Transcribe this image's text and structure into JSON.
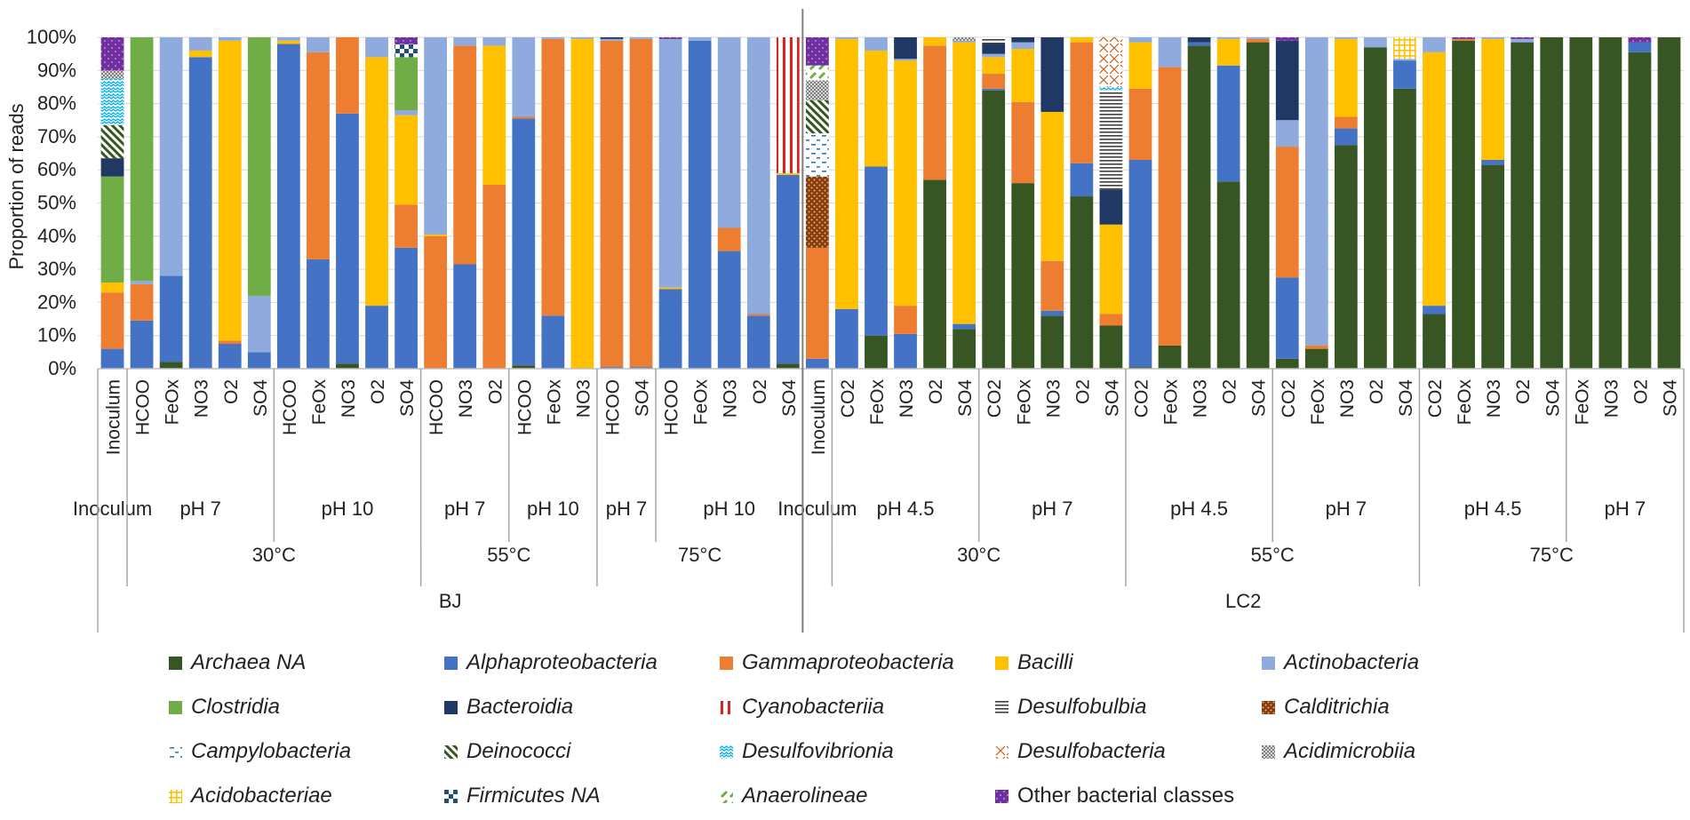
{
  "chart_data": {
    "type": "bar",
    "stacked": true,
    "ylabel": "Proportion of reads",
    "ylim": [
      0,
      100
    ],
    "y_ticks": [
      "0%",
      "10%",
      "20%",
      "30%",
      "40%",
      "50%",
      "60%",
      "70%",
      "80%",
      "90%",
      "100%"
    ],
    "classes": [
      "Archaea NA",
      "Alphaproteobacteria",
      "Gammaproteobacteria",
      "Bacilli",
      "Actinobacteria",
      "Clostridia",
      "Bacteroidia",
      "Cyanobacteriia",
      "Desulfobulbia",
      "Calditrichia",
      "Campylobacteria",
      "Deinococci",
      "Desulfovibrionia",
      "Desulfobacteria",
      "Acidimicrobiia",
      "Acidobacteriae",
      "Firmicutes NA",
      "Anaerolineae",
      "Other bacterial classes"
    ],
    "class_colors": {
      "Archaea NA": "#375623",
      "Alphaproteobacteria": "#4472c4",
      "Gammaproteobacteria": "#ed7d31",
      "Bacilli": "#ffc000",
      "Actinobacteria": "#8faadc",
      "Clostridia": "#70ad47",
      "Bacteroidia": "#203864",
      "Cyanobacteriia": "#e0201b",
      "Desulfobulbia": "#404040",
      "Calditrichia": "#843c0c",
      "Campylobacteria": "#2e75b6",
      "Deinococci": "#375623",
      "Desulfovibrionia": "#00b0f0",
      "Desulfobacteria": "#c55a11",
      "Acidimicrobiia": "#7f7f7f",
      "Acidobacteriae": "#ffc000",
      "Firmicutes NA": "#1f4e79",
      "Anaerolineae": "#70ad47",
      "Other bacterial classes": "#7030a0"
    },
    "legend": [
      {
        "label": "Archaea NA",
        "italic": true
      },
      {
        "label": "Alphaproteobacteria",
        "italic": true
      },
      {
        "label": "Gammaproteobacteria",
        "italic": true
      },
      {
        "label": "Bacilli",
        "italic": true
      },
      {
        "label": "Actinobacteria",
        "italic": true
      },
      {
        "label": "Clostridia",
        "italic": true
      },
      {
        "label": "Bacteroidia",
        "italic": true
      },
      {
        "label": "Cyanobacteriia",
        "italic": true
      },
      {
        "label": "Desulfobulbia",
        "italic": true
      },
      {
        "label": "Calditrichia",
        "italic": true
      },
      {
        "label": "Campylobacteria",
        "italic": true
      },
      {
        "label": "Deinococci",
        "italic": true
      },
      {
        "label": "Desulfovibrionia",
        "italic": true
      },
      {
        "label": "Desulfobacteria",
        "italic": true
      },
      {
        "label": "Acidimicrobiia",
        "italic": true
      },
      {
        "label": "Acidobacteriae",
        "italic": true
      },
      {
        "label": "Firmicutes NA",
        "italic": true
      },
      {
        "label": "Anaerolineae",
        "italic": true
      },
      {
        "label": "Other bacterial classes",
        "italic": false
      }
    ],
    "level1": [
      {
        "label": "Inoculum",
        "span": 1
      },
      {
        "label": "pH 7",
        "span": 5
      },
      {
        "label": "pH 10",
        "span": 5
      },
      {
        "label": "pH 7",
        "span": 3
      },
      {
        "label": "pH 10",
        "span": 3
      },
      {
        "label": "pH 7",
        "span": 2
      },
      {
        "label": "pH 10",
        "span": 5
      },
      {
        "label": "Inoculum",
        "span": 1
      },
      {
        "label": "pH 4.5",
        "span": 5
      },
      {
        "label": "pH 7",
        "span": 5
      },
      {
        "label": "pH 4.5",
        "span": 5
      },
      {
        "label": "pH 7",
        "span": 5
      },
      {
        "label": "pH 4.5",
        "span": 5
      },
      {
        "label": "pH 7",
        "span": 4
      }
    ],
    "level2": [
      {
        "label": "",
        "span": 1
      },
      {
        "label": "30°C",
        "span": 10
      },
      {
        "label": "55°C",
        "span": 6
      },
      {
        "label": "75°C",
        "span": 7
      },
      {
        "label": "",
        "span": 1
      },
      {
        "label": "30°C",
        "span": 10
      },
      {
        "label": "55°C",
        "span": 10
      },
      {
        "label": "75°C",
        "span": 9
      }
    ],
    "level3": [
      {
        "label": "BJ",
        "span": 24
      },
      {
        "label": "LC2",
        "span": 30
      }
    ],
    "bars": [
      {
        "label": "Inoculum",
        "values": {
          "Alphaproteobacteria": 6,
          "Gammaproteobacteria": 17,
          "Bacilli": 3,
          "Clostridia": 32,
          "Bacteroidia": 5.5,
          "Deinococci": 10,
          "Desulfovibrionia": 14,
          "Acidimicrobiia": 2.5,
          "Other bacterial classes": 10
        }
      },
      {
        "label": "HCOO",
        "values": {
          "Alphaproteobacteria": 14.5,
          "Gammaproteobacteria": 11,
          "Actinobacteria": 1,
          "Clostridia": 73.5
        }
      },
      {
        "label": "FeOx",
        "values": {
          "Archaea NA": 2,
          "Alphaproteobacteria": 26,
          "Actinobacteria": 72
        }
      },
      {
        "label": "NO3",
        "values": {
          "Alphaproteobacteria": 94,
          "Bacilli": 2,
          "Actinobacteria": 4
        }
      },
      {
        "label": "O2",
        "values": {
          "Alphaproteobacteria": 7.5,
          "Gammaproteobacteria": 1,
          "Bacilli": 90.5,
          "Actinobacteria": 1
        }
      },
      {
        "label": "SO4",
        "values": {
          "Alphaproteobacteria": 5,
          "Actinobacteria": 17,
          "Clostridia": 78
        }
      },
      {
        "label": "HCOO",
        "values": {
          "Alphaproteobacteria": 98,
          "Bacilli": 1,
          "Actinobacteria": 1
        }
      },
      {
        "label": "FeOx",
        "values": {
          "Alphaproteobacteria": 33,
          "Gammaproteobacteria": 62.5,
          "Actinobacteria": 4.5
        }
      },
      {
        "label": "NO3",
        "values": {
          "Archaea NA": 1.5,
          "Alphaproteobacteria": 75.5,
          "Gammaproteobacteria": 23
        }
      },
      {
        "label": "O2",
        "values": {
          "Alphaproteobacteria": 19,
          "Bacilli": 75,
          "Actinobacteria": 6
        }
      },
      {
        "label": "SO4",
        "values": {
          "Alphaproteobacteria": 36.5,
          "Gammaproteobacteria": 13,
          "Bacilli": 27,
          "Actinobacteria": 1.5,
          "Clostridia": 16,
          "Firmicutes NA": 4,
          "Other bacterial classes": 2
        }
      },
      {
        "label": "HCOO",
        "values": {
          "Gammaproteobacteria": 40,
          "Bacilli": 0.5,
          "Actinobacteria": 59.5
        }
      },
      {
        "label": "NO3",
        "values": {
          "Alphaproteobacteria": 31.5,
          "Gammaproteobacteria": 66,
          "Actinobacteria": 2.5
        }
      },
      {
        "label": "O2",
        "values": {
          "Gammaproteobacteria": 55.5,
          "Bacilli": 42,
          "Actinobacteria": 2.5
        }
      },
      {
        "label": "HCOO",
        "values": {
          "Archaea NA": 1,
          "Alphaproteobacteria": 74.5,
          "Gammaproteobacteria": 0.5,
          "Actinobacteria": 24
        }
      },
      {
        "label": "FeOx",
        "values": {
          "Alphaproteobacteria": 16,
          "Gammaproteobacteria": 83.5,
          "Actinobacteria": 0.5
        }
      },
      {
        "label": "NO3",
        "values": {
          "Bacilli": 99.5,
          "Actinobacteria": 0.5
        }
      },
      {
        "label": "HCOO",
        "values": {
          "Alphaproteobacteria": 0.5,
          "Gammaproteobacteria": 98.5,
          "Actinobacteria": 0.5,
          "Bacteroidia": 0.5
        }
      },
      {
        "label": "SO4",
        "values": {
          "Alphaproteobacteria": 0.5,
          "Gammaproteobacteria": 99,
          "Actinobacteria": 0.5
        }
      },
      {
        "label": "HCOO",
        "values": {
          "Alphaproteobacteria": 24,
          "Bacilli": 0.5,
          "Actinobacteria": 75,
          "Other bacterial classes": 0.5
        }
      },
      {
        "label": "FeOx",
        "values": {
          "Alphaproteobacteria": 99,
          "Actinobacteria": 1
        }
      },
      {
        "label": "NO3",
        "values": {
          "Alphaproteobacteria": 35.5,
          "Gammaproteobacteria": 7,
          "Actinobacteria": 57.5
        }
      },
      {
        "label": "O2",
        "values": {
          "Alphaproteobacteria": 16,
          "Gammaproteobacteria": 0.5,
          "Actinobacteria": 83.5
        }
      },
      {
        "label": "SO4",
        "values": {
          "Archaea NA": 1.5,
          "Alphaproteobacteria": 57,
          "Bacilli": 0.5,
          "Cyanobacteriia": 41
        }
      },
      {
        "label": "Inoculum",
        "values": {
          "Alphaproteobacteria": 3,
          "Gammaproteobacteria": 33.5,
          "Calditrichia": 21.5,
          "Campylobacteria": 13,
          "Deinococci": 10,
          "Acidimicrobiia": 6,
          "Anaerolineae": 4.5,
          "Other bacterial classes": 8.5
        }
      },
      {
        "label": "CO2",
        "values": {
          "Alphaproteobacteria": 18,
          "Bacilli": 81.5,
          "Actinobacteria": 0.5
        }
      },
      {
        "label": "FeOx",
        "values": {
          "Archaea NA": 10,
          "Alphaproteobacteria": 51,
          "Bacilli": 35,
          "Actinobacteria": 4
        }
      },
      {
        "label": "NO3",
        "values": {
          "Alphaproteobacteria": 10.5,
          "Gammaproteobacteria": 8.5,
          "Bacilli": 74,
          "Actinobacteria": 0.5,
          "Bacteroidia": 6.5
        }
      },
      {
        "label": "O2",
        "values": {
          "Archaea NA": 57,
          "Gammaproteobacteria": 40.5,
          "Bacilli": 2.5
        }
      },
      {
        "label": "SO4",
        "values": {
          "Archaea NA": 12,
          "Alphaproteobacteria": 1.5,
          "Bacilli": 85,
          "Actinobacteria": 0.5,
          "Acidimicrobiia": 1
        }
      },
      {
        "label": "CO2",
        "values": {
          "Archaea NA": 84,
          "Alphaproteobacteria": 0.5,
          "Gammaproteobacteria": 4.5,
          "Bacilli": 5,
          "Actinobacteria": 1,
          "Bacteroidia": 3,
          "Desulfobulbia": 2
        }
      },
      {
        "label": "FeOx",
        "values": {
          "Archaea NA": 56,
          "Gammaproteobacteria": 24.5,
          "Bacilli": 16,
          "Actinobacteria": 2,
          "Bacteroidia": 1.5
        }
      },
      {
        "label": "NO3",
        "values": {
          "Archaea NA": 16,
          "Alphaproteobacteria": 1.5,
          "Gammaproteobacteria": 15,
          "Bacilli": 45,
          "Bacteroidia": 22.5
        }
      },
      {
        "label": "O2",
        "values": {
          "Archaea NA": 52,
          "Alphaproteobacteria": 10,
          "Gammaproteobacteria": 36.5,
          "Bacilli": 1.5
        }
      },
      {
        "label": "SO4",
        "values": {
          "Archaea NA": 13,
          "Gammaproteobacteria": 3.5,
          "Bacilli": 27,
          "Bacteroidia": 10.5,
          "Desulfobulbia": 30,
          "Desulfobacteria": 15,
          "Desulfovibrionia": 1
        }
      },
      {
        "label": "CO2",
        "values": {
          "Archaea NA": 0.5,
          "Alphaproteobacteria": 62.5,
          "Gammaproteobacteria": 21.5,
          "Bacilli": 14,
          "Actinobacteria": 1.5
        }
      },
      {
        "label": "FeOx",
        "values": {
          "Archaea NA": 7,
          "Gammaproteobacteria": 84,
          "Actinobacteria": 9
        }
      },
      {
        "label": "NO3",
        "values": {
          "Archaea NA": 97.5,
          "Alphaproteobacteria": 1,
          "Bacteroidia": 1.5
        }
      },
      {
        "label": "O2",
        "values": {
          "Archaea NA": 56.5,
          "Alphaproteobacteria": 35,
          "Bacilli": 8,
          "Actinobacteria": 0.5
        }
      },
      {
        "label": "SO4",
        "values": {
          "Archaea NA": 98.5,
          "Gammaproteobacteria": 1,
          "Actinobacteria": 0.5
        }
      },
      {
        "label": "CO2",
        "values": {
          "Archaea NA": 3,
          "Alphaproteobacteria": 24.5,
          "Gammaproteobacteria": 39.5,
          "Actinobacteria": 8,
          "Bacteroidia": 24,
          "Other bacterial classes": 1
        }
      },
      {
        "label": "FeOx",
        "values": {
          "Archaea NA": 6,
          "Gammaproteobacteria": 1,
          "Actinobacteria": 93
        }
      },
      {
        "label": "NO3",
        "values": {
          "Archaea NA": 67.5,
          "Alphaproteobacteria": 5,
          "Gammaproteobacteria": 3.5,
          "Bacilli": 23.5,
          "Actinobacteria": 0.5
        }
      },
      {
        "label": "O2",
        "values": {
          "Archaea NA": 97,
          "Actinobacteria": 3
        }
      },
      {
        "label": "SO4",
        "values": {
          "Archaea NA": 84.5,
          "Alphaproteobacteria": 8.5,
          "Actinobacteria": 0.5,
          "Acidobacteriae": 6.5
        }
      },
      {
        "label": "CO2",
        "values": {
          "Archaea NA": 16.5,
          "Alphaproteobacteria": 2.5,
          "Bacilli": 76.5,
          "Actinobacteria": 4.5
        }
      },
      {
        "label": "FeOx",
        "values": {
          "Archaea NA": 99,
          "Gammaproteobacteria": 0.5,
          "Other bacterial classes": 0.5
        }
      },
      {
        "label": "NO3",
        "values": {
          "Archaea NA": 61.5,
          "Alphaproteobacteria": 1.5,
          "Bacilli": 36.5,
          "Actinobacteria": 0.5
        }
      },
      {
        "label": "O2",
        "values": {
          "Archaea NA": 98.5,
          "Actinobacteria": 1,
          "Other bacterial classes": 0.5
        }
      },
      {
        "label": "SO4",
        "values": {
          "Archaea NA": 100
        }
      },
      {
        "label": "FeOx",
        "values": {
          "Archaea NA": 100
        }
      },
      {
        "label": "NO3",
        "values": {
          "Archaea NA": 100
        }
      },
      {
        "label": "O2",
        "values": {
          "Archaea NA": 95.5,
          "Alphaproteobacteria": 3,
          "Other bacterial classes": 1.5
        }
      },
      {
        "label": "SO4",
        "values": {
          "Archaea NA": 100
        }
      }
    ]
  }
}
